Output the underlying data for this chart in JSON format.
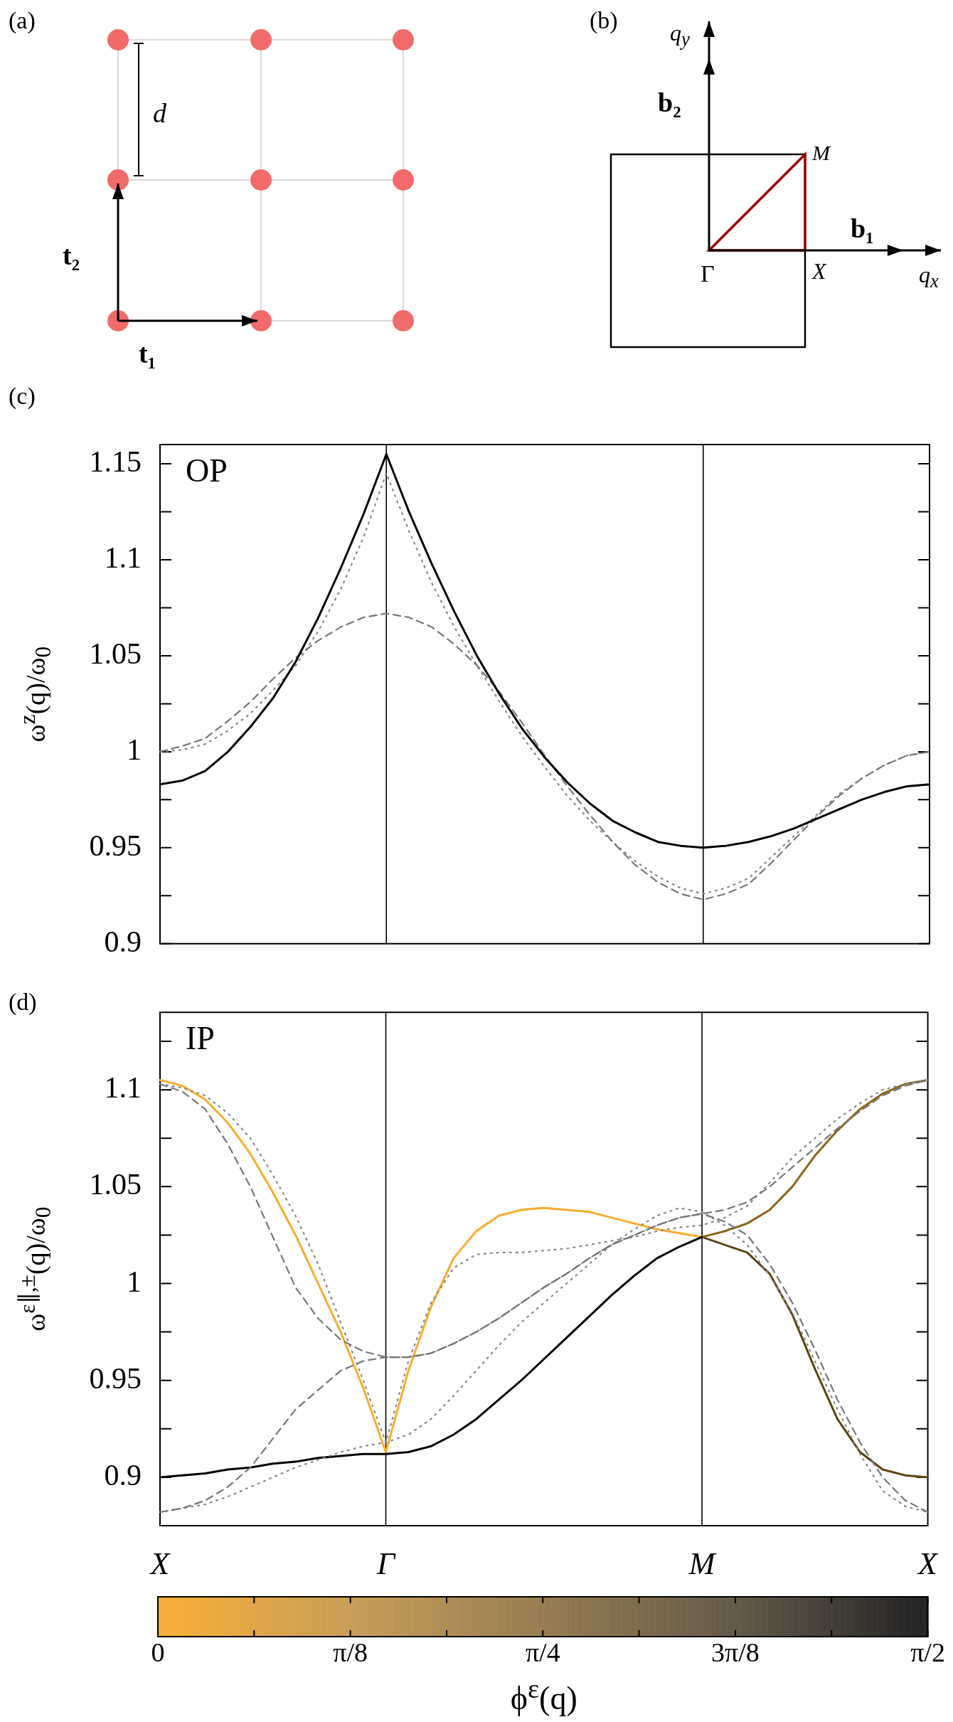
{
  "chart_data": [
    {
      "type": "other",
      "title": "(a)",
      "annotations": [
        "d",
        "t₁",
        "t₂"
      ]
    },
    {
      "type": "other",
      "title": "(b)",
      "annotations": [
        "q$_{y}$",
        "b₂",
        "M",
        "Γ",
        "X",
        "b₁",
        "q$_{x}$"
      ]
    },
    {
      "type": "line",
      "title": "(c)",
      "annotations": [
        "OP"
      ],
      "ylabel": "ω$^{z}$(q)/ω$_{0}$",
      "ylim": [
        0.9,
        1.16
      ],
      "categories": [
        "X",
        null,
        null,
        null,
        null,
        null,
        null,
        null,
        null,
        null,
        "Γ",
        null,
        null,
        null,
        null,
        null,
        null,
        null,
        null,
        null,
        null,
        null,
        null,
        null,
        "M",
        null,
        null,
        null,
        null,
        null,
        null,
        null,
        null,
        null,
        "X"
      ],
      "yticks": [
        0.9,
        {
          "value": 0.925,
          "label": null
        },
        0.95,
        {
          "value": 0.975,
          "label": null
        },
        1,
        {
          "value": 1.025,
          "label": null
        },
        1.05,
        {
          "value": 1.075,
          "label": null
        },
        1.1,
        {
          "value": 1.125,
          "label": null
        },
        1.15
      ],
      "tick_labels": "y",
      "grid": false,
      "legend": false,
      "ref_lines": [
        {
          "axis": "x",
          "value": "Γ",
          "color": "#000000"
        },
        {
          "axis": "x",
          "value": "M",
          "color": "#000000"
        }
      ],
      "series": [
        {
          "color": "#000000",
          "line_style": "solid",
          "values": [
            0.983,
            0.985,
            0.99,
            1.0,
            1.013,
            1.028,
            1.047,
            1.07,
            1.096,
            1.124,
            1.155,
            1.125,
            1.098,
            1.073,
            1.05,
            1.03,
            1.012,
            0.997,
            0.984,
            0.973,
            0.964,
            0.958,
            0.953,
            0.951,
            0.95,
            0.951,
            0.953,
            0.956,
            0.96,
            0.965,
            0.97,
            0.975,
            0.979,
            0.982,
            0.983
          ]
        },
        {
          "color": "#777777",
          "line_style": "dashed",
          "values": [
            1,
            1.003,
            1.007,
            1.016,
            1.026,
            1.038,
            1.049,
            1.058,
            1.065,
            1.07,
            1.072,
            1.07,
            1.065,
            1.056,
            1.045,
            1.031,
            1.015,
            0.998,
            0.982,
            0.967,
            0.953,
            0.941,
            0.932,
            0.926,
            0.923,
            0.926,
            0.931,
            0.942,
            0.954,
            0.966,
            0.977,
            0.986,
            0.993,
            0.998,
            1.0
          ]
        },
        {
          "color": "#888888",
          "line_style": "dotted",
          "values": [
            1,
            1.001,
            1.004,
            1.011,
            1.02,
            1.032,
            1.045,
            1.063,
            1.085,
            1.112,
            1.145,
            1.115,
            1.088,
            1.065,
            1.045,
            1.026,
            1.008,
            0.992,
            0.977,
            0.964,
            0.953,
            0.943,
            0.935,
            0.929,
            0.926,
            0.929,
            0.934,
            0.945,
            0.956,
            0.967,
            0.978,
            0.986,
            0.993,
            0.998,
            1.0
          ]
        }
      ]
    },
    {
      "type": "line",
      "title": "(d)",
      "annotations": [
        "IP"
      ],
      "ylabel": "ω$^{ε∥,±}$(q)/ω$_{0}$",
      "ylim": [
        0.875,
        1.14
      ],
      "categories": [
        "X",
        null,
        null,
        null,
        null,
        null,
        null,
        null,
        null,
        null,
        "Γ",
        null,
        null,
        null,
        null,
        null,
        null,
        null,
        null,
        null,
        null,
        null,
        null,
        null,
        "M",
        null,
        null,
        null,
        null,
        null,
        null,
        null,
        null,
        null,
        "X"
      ],
      "yticks": [
        0.9,
        {
          "value": 0.925,
          "label": null
        },
        0.95,
        {
          "value": 0.975,
          "label": null
        },
        1,
        {
          "value": 1.025,
          "label": null
        },
        1.05,
        {
          "value": 1.075,
          "label": null
        },
        1.1,
        {
          "value": 1.125,
          "label": null
        }
      ],
      "grid": false,
      "legend": false,
      "clabel": "ϕ$^{ε}$(q)",
      "clim": [
        0,
        1.5708
      ],
      "cticks": [
        {
          "value": 0,
          "label": "0"
        },
        {
          "value": 0.19635,
          "label": null
        },
        {
          "value": 0.3927,
          "label": "π/8"
        },
        {
          "value": 0.58905,
          "label": null
        },
        {
          "value": 0.7854,
          "label": "π/4"
        },
        {
          "value": 0.98175,
          "label": null
        },
        {
          "value": 1.1781,
          "label": "3π/8"
        },
        {
          "value": 1.37445,
          "label": null
        },
        {
          "value": 1.5708,
          "label": "π/2"
        }
      ],
      "ref_lines": [
        {
          "axis": "x",
          "value": "Γ",
          "color": "#000000"
        },
        {
          "axis": "x",
          "value": "M",
          "color": "#000000"
        }
      ],
      "series": [
        {
          "color": "#777777",
          "line_style": "dashed",
          "values": [
            1.103,
            1.099,
            1.09,
            1.072,
            1.05,
            1.024,
            0.998,
            0.982,
            0.971,
            0.965,
            0.962,
            0.962,
            0.964,
            0.969,
            0.975,
            0.982,
            0.99,
            0.998,
            1.005,
            1.013,
            1.02,
            1.025,
            1.03,
            1.034,
            1.036,
            1.038,
            1.042,
            1.05,
            1.06,
            1.07,
            1.08,
            1.089,
            1.097,
            1.102,
            1.105
          ]
        },
        {
          "color": "#777777",
          "line_style": "dashed",
          "values": [
            0.882,
            0.884,
            0.888,
            0.895,
            0.905,
            0.92,
            0.935,
            0.945,
            0.955,
            0.96,
            0.962,
            0.962,
            0.964,
            0.969,
            0.975,
            0.982,
            0.99,
            0.998,
            1.005,
            1.013,
            1.02,
            1.025,
            1.03,
            1.034,
            1.036,
            1.032,
            1.025,
            1.01,
            0.99,
            0.966,
            0.94,
            0.918,
            0.9,
            0.888,
            0.882
          ]
        },
        {
          "color": "#888888",
          "line_style": "dotted",
          "values": [
            1.103,
            1.101,
            1.097,
            1.088,
            1.075,
            1.056,
            1.035,
            1.01,
            0.98,
            0.95,
            0.918,
            0.96,
            0.99,
            1.008,
            1.015,
            1.016,
            1.016,
            1.017,
            1.018,
            1.02,
            1.022,
            1.024,
            1.027,
            1.029,
            1.03,
            1.034,
            1.04,
            1.052,
            1.065,
            1.075,
            1.085,
            1.093,
            1.1,
            1.103,
            1.105
          ]
        },
        {
          "color": "#888888",
          "line_style": "dotted",
          "values": [
            0.882,
            0.884,
            0.886,
            0.89,
            0.895,
            0.9,
            0.905,
            0.909,
            0.913,
            0.916,
            0.918,
            0.922,
            0.93,
            0.942,
            0.955,
            0.968,
            0.98,
            0.99,
            1.0,
            1.01,
            1.02,
            1.028,
            1.035,
            1.039,
            1.037,
            1.03,
            1.02,
            1.004,
            0.985,
            0.96,
            0.935,
            0.912,
            0.893,
            0.885,
            0.882
          ]
        },
        {
          "color": "#000000",
          "line_style": "solid",
          "values": [
            0.9,
            0.901,
            0.902,
            0.904,
            0.905,
            0.907,
            0.908,
            0.91,
            0.911,
            0.912,
            0.912,
            0.913,
            0.916,
            0.922,
            0.93,
            0.94,
            0.95,
            0.961,
            0.972,
            0.983,
            0.994,
            1.004,
            1.013,
            1.019,
            1.024,
            null,
            null,
            null,
            null,
            null,
            null,
            null,
            null,
            null,
            null
          ]
        },
        {
          "color": "#f7ad2e",
          "line_style": "solid",
          "values": [
            1.105,
            1.102,
            1.095,
            1.083,
            1.067,
            1.047,
            1.025,
            1.0,
            0.975,
            0.946,
            0.913,
            0.955,
            0.988,
            1.013,
            1.027,
            1.035,
            1.038,
            1.039,
            1.038,
            1.037,
            1.034,
            1.031,
            1.028,
            1.026,
            1.024,
            null,
            null,
            null,
            null,
            null,
            null,
            null,
            null,
            null,
            null
          ]
        },
        {
          "color": "#8c6418",
          "line_style": "solid",
          "values": [
            null,
            null,
            null,
            null,
            null,
            null,
            null,
            null,
            null,
            null,
            null,
            null,
            null,
            null,
            null,
            null,
            null,
            null,
            null,
            null,
            null,
            null,
            null,
            null,
            1.024,
            1.027,
            1.031,
            1.038,
            1.05,
            1.066,
            1.079,
            1.09,
            1.098,
            1.103,
            1.105
          ]
        },
        {
          "color": "#5e4312",
          "line_style": "solid",
          "values": [
            null,
            null,
            null,
            null,
            null,
            null,
            null,
            null,
            null,
            null,
            null,
            null,
            null,
            null,
            null,
            null,
            null,
            null,
            null,
            null,
            null,
            null,
            null,
            null,
            1.024,
            1.02,
            1.016,
            1.005,
            0.984,
            0.956,
            0.93,
            0.913,
            0.904,
            0.901,
            0.9
          ]
        }
      ]
    }
  ]
}
